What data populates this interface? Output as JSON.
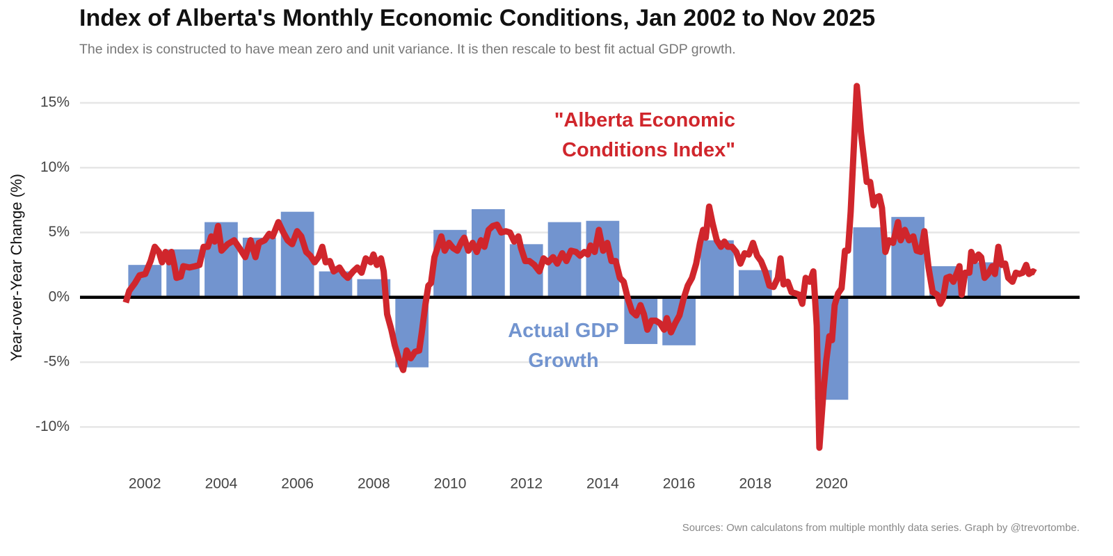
{
  "chart_data": {
    "type": "combo",
    "title": "Index of Alberta's Monthly Economic Conditions, Jan 2002 to Nov 2025",
    "subtitle": "The index is constructed to have mean zero and unit variance. It is then rescale to best fit actual GDP growth.",
    "y_label": "Year-over-Year Change (%)",
    "source": "Sources: Own calculatons from multiple monthly data series. Graph by @trevortombe.",
    "xlim": [
      2000.8,
      2027
    ],
    "ylim": [
      -12.5,
      16.5
    ],
    "xticks": [
      {
        "value": 2002.5,
        "label": "2002"
      },
      {
        "value": 2004.5,
        "label": "2004"
      },
      {
        "value": 2006.5,
        "label": "2006"
      },
      {
        "value": 2008.5,
        "label": "2008"
      },
      {
        "value": 2010.5,
        "label": "2010"
      },
      {
        "value": 2012.5,
        "label": "2012"
      },
      {
        "value": 2014.5,
        "label": "2014"
      },
      {
        "value": 2016.5,
        "label": "2016"
      },
      {
        "value": 2018.5,
        "label": "2018"
      },
      {
        "value": 2020.5,
        "label": "2020"
      }
    ],
    "yticks": [
      {
        "value": -10,
        "label": "-10%"
      },
      {
        "value": -5,
        "label": "-5%"
      },
      {
        "value": 0,
        "label": "0%"
      },
      {
        "value": 5,
        "label": "5%"
      },
      {
        "value": 10,
        "label": "10%"
      },
      {
        "value": 15,
        "label": "15%"
      }
    ],
    "grid": true,
    "series": [
      {
        "name": "Actual GDP Growth",
        "type": "bar",
        "color": "#7294cf",
        "x": [
          2002.5,
          2003.5,
          2004.5,
          2005.5,
          2006.5,
          2007.5,
          2008.5,
          2009.5,
          2010.5,
          2011.5,
          2012.5,
          2013.5,
          2014.5,
          2015.5,
          2016.5,
          2017.5,
          2018.5,
          2019.5,
          2020.5,
          2021.5,
          2022.5,
          2023.5,
          2024.5
        ],
        "values": [
          2.5,
          3.7,
          5.8,
          4.6,
          6.6,
          2.0,
          1.4,
          -5.4,
          5.2,
          6.8,
          4.1,
          5.8,
          5.9,
          -3.6,
          -3.7,
          4.4,
          2.1,
          0,
          -7.9,
          5.4,
          6.2,
          2.4,
          2.7
        ]
      },
      {
        "name": "\"Alberta Economic Conditions Index\"",
        "type": "line",
        "color": "#d0262c",
        "x": [
          2002.0,
          2002.09,
          2002.24,
          2002.36,
          2002.51,
          2002.65,
          2002.76,
          2002.87,
          2002.95,
          2003.04,
          2003.13,
          2003.2,
          2003.27,
          2003.33,
          2003.44,
          2003.51,
          2003.67,
          2003.82,
          2003.93,
          2004.04,
          2004.15,
          2004.24,
          2004.33,
          2004.42,
          2004.51,
          2004.67,
          2004.84,
          2005.0,
          2005.13,
          2005.27,
          2005.4,
          2005.49,
          2005.64,
          2005.76,
          2005.85,
          2006.0,
          2006.13,
          2006.24,
          2006.36,
          2006.49,
          2006.6,
          2006.73,
          2006.84,
          2006.95,
          2007.05,
          2007.15,
          2007.24,
          2007.35,
          2007.45,
          2007.6,
          2007.71,
          2007.82,
          2007.96,
          2008.07,
          2008.18,
          2008.29,
          2008.42,
          2008.49,
          2008.58,
          2008.69,
          2008.76,
          2008.85,
          2008.96,
          2009.05,
          2009.16,
          2009.27,
          2009.36,
          2009.47,
          2009.58,
          2009.69,
          2009.76,
          2009.85,
          2009.93,
          2010.0,
          2010.09,
          2010.18,
          2010.27,
          2010.36,
          2010.47,
          2010.58,
          2010.69,
          2010.8,
          2010.87,
          2010.98,
          2011.09,
          2011.2,
          2011.31,
          2011.4,
          2011.51,
          2011.62,
          2011.73,
          2011.84,
          2011.96,
          2012.07,
          2012.18,
          2012.29,
          2012.36,
          2012.47,
          2012.58,
          2012.71,
          2012.84,
          2012.95,
          2013.07,
          2013.2,
          2013.31,
          2013.44,
          2013.55,
          2013.67,
          2013.8,
          2013.91,
          2014.02,
          2014.11,
          2014.18,
          2014.29,
          2014.4,
          2014.51,
          2014.62,
          2014.73,
          2014.84,
          2014.95,
          2015.05,
          2015.16,
          2015.27,
          2015.38,
          2015.49,
          2015.58,
          2015.67,
          2015.78,
          2015.89,
          2016.0,
          2016.11,
          2016.18,
          2016.29,
          2016.4,
          2016.51,
          2016.62,
          2016.73,
          2016.84,
          2016.95,
          2017.05,
          2017.13,
          2017.2,
          2017.29,
          2017.38,
          2017.49,
          2017.6,
          2017.69,
          2017.78,
          2017.89,
          2018.0,
          2018.11,
          2018.22,
          2018.33,
          2018.44,
          2018.55,
          2018.65,
          2018.76,
          2018.87,
          2018.98,
          2019.09,
          2019.16,
          2019.24,
          2019.35,
          2019.45,
          2019.56,
          2019.65,
          2019.73,
          2019.82,
          2019.93,
          2020.02,
          2020.11,
          2020.18,
          2020.29,
          2020.36,
          2020.44,
          2020.51,
          2020.58,
          2020.67,
          2020.76,
          2020.85,
          2020.93,
          2021.0,
          2021.16,
          2021.27,
          2021.42,
          2021.51,
          2021.6,
          2021.67,
          2021.75,
          2021.82,
          2021.91,
          2022.0,
          2022.11,
          2022.24,
          2022.31,
          2022.42,
          2022.53,
          2022.64,
          2022.73,
          2022.84,
          2022.93,
          2023.04,
          2023.15,
          2023.27,
          2023.35,
          2023.42,
          2023.51,
          2023.6,
          2023.69,
          2023.8,
          2023.85,
          2023.91,
          2024.0,
          2024.11,
          2024.16,
          2024.25,
          2024.35,
          2024.42,
          2024.51,
          2024.6,
          2024.71,
          2024.78,
          2024.87,
          2024.96,
          2025.05,
          2025.13,
          2025.24,
          2025.33,
          2025.42,
          2025.51,
          2025.6,
          2025.67,
          2025.78,
          2025.84
        ],
        "values": [
          -0.4,
          0.5,
          1.1,
          1.7,
          1.8,
          2.8,
          3.9,
          3.5,
          2.7,
          3.5,
          2.7,
          3.5,
          2.5,
          1.5,
          1.6,
          2.4,
          2.3,
          2.4,
          2.5,
          3.9,
          3.9,
          4.7,
          4.3,
          5.5,
          3.6,
          4.1,
          4.4,
          3.7,
          3.1,
          4.4,
          3.1,
          4.2,
          4.4,
          4.9,
          4.7,
          5.8,
          5.0,
          4.4,
          4.1,
          5.1,
          4.7,
          3.5,
          3.2,
          2.7,
          3.1,
          3.9,
          2.7,
          2.8,
          2.0,
          2.3,
          1.8,
          1.5,
          2.0,
          2.3,
          1.9,
          3.0,
          2.7,
          3.3,
          2.5,
          3.0,
          2.0,
          -1.3,
          -2.5,
          -3.7,
          -4.8,
          -5.6,
          -4.1,
          -4.7,
          -4.2,
          -4.1,
          -2.7,
          -0.6,
          0.9,
          1.1,
          3.1,
          3.9,
          4.7,
          3.6,
          4.2,
          3.8,
          3.6,
          4.3,
          4.6,
          3.6,
          4.2,
          3.5,
          4.4,
          3.9,
          5.2,
          5.5,
          5.6,
          5.0,
          5.1,
          5.0,
          4.3,
          4.7,
          3.8,
          2.8,
          2.8,
          2.5,
          2.0,
          3.0,
          2.7,
          3.1,
          2.6,
          3.4,
          2.8,
          3.6,
          3.5,
          3.2,
          3.5,
          3.3,
          4.0,
          3.5,
          5.2,
          3.6,
          4.2,
          2.8,
          2.8,
          1.5,
          1.2,
          -0.1,
          -1.1,
          -1.4,
          -0.6,
          -1.3,
          -2.5,
          -1.8,
          -1.8,
          -2.0,
          -2.5,
          -1.6,
          -2.7,
          -2.0,
          -1.4,
          -0.1,
          0.9,
          1.5,
          2.6,
          4.2,
          5.2,
          4.6,
          7.0,
          5.7,
          4.4,
          3.9,
          4.3,
          3.9,
          3.9,
          3.5,
          2.6,
          3.4,
          3.3,
          4.2,
          3.2,
          2.8,
          2.0,
          0.9,
          0.8,
          1.5,
          3.0,
          1.0,
          1.2,
          0.4,
          0.3,
          0.2,
          -0.5,
          1.5,
          1.2,
          2.0,
          -2.2,
          -11.6,
          -7.1,
          -4.9,
          -3.0,
          -3.3,
          -0.6,
          0.3,
          0.7,
          3.6,
          3.6,
          6.6,
          16.3,
          12.7,
          8.9,
          8.9,
          7.1,
          7.7,
          7.8,
          6.9,
          3.5,
          4.4,
          4.2,
          5.8,
          4.4,
          5.2,
          4.4,
          4.7,
          3.6,
          3.5,
          5.1,
          2.3,
          0.4,
          0.2,
          -0.5,
          -0.1,
          1.5,
          1.6,
          1.2,
          2.0,
          2.4,
          0.2,
          1.9,
          1.9,
          3.5,
          2.8,
          3.3,
          3.1,
          1.5,
          1.8,
          2.4,
          1.8,
          3.9,
          2.5,
          2.6,
          1.5,
          1.2,
          1.9,
          1.8,
          1.9,
          2.5,
          1.8,
          2.0,
          1.9
        ]
      }
    ]
  }
}
